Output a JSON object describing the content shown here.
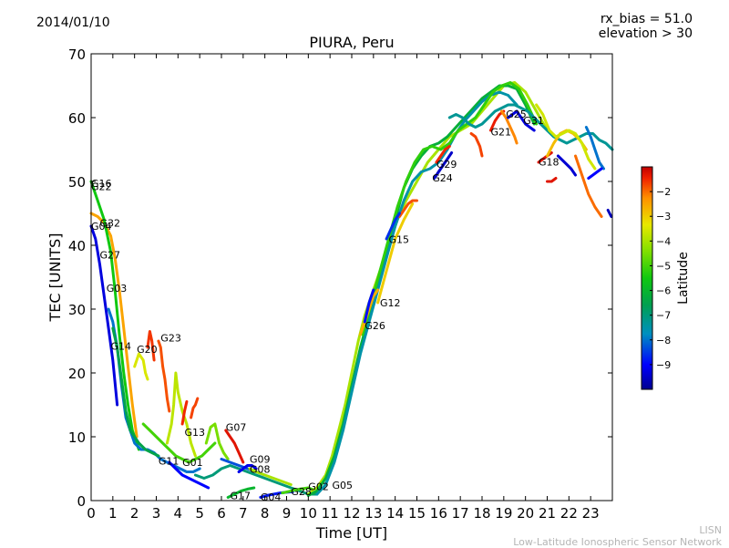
{
  "header": {
    "date": "2014/01/10",
    "rx_bias": "rx_bias = 51.0",
    "elevation": "elevation > 30"
  },
  "footer": {
    "line1": "LISN",
    "line2": "Low-Latitude Ionospheric Sensor Network"
  },
  "chart_data": {
    "type": "scatter",
    "title": "PIURA, Peru",
    "xlabel": "Time [UT]",
    "ylabel": "TEC [UNITS]",
    "xlim": [
      0,
      24
    ],
    "ylim": [
      0,
      70
    ],
    "xticks": [
      0,
      1,
      2,
      3,
      4,
      5,
      6,
      7,
      8,
      9,
      10,
      11,
      12,
      13,
      14,
      15,
      16,
      17,
      18,
      19,
      20,
      21,
      22,
      23
    ],
    "yticks": [
      0,
      10,
      20,
      30,
      40,
      50,
      60,
      70
    ],
    "colorbar": {
      "label": "Latitude",
      "ticks": [
        -2,
        -3,
        -4,
        -5,
        -6,
        -7,
        -8,
        -9
      ],
      "range": [
        -10,
        -1
      ],
      "tick_labels": [
        "−2",
        "−3",
        "−4",
        "−5",
        "−6",
        "−7",
        "−8",
        "−9"
      ]
    },
    "satellite_labels": [
      {
        "name": "G16",
        "x": 0.0,
        "y": 49.7
      },
      {
        "name": "G22",
        "x": 0.0,
        "y": 49.2
      },
      {
        "name": "G04",
        "x": 0.0,
        "y": 43.0
      },
      {
        "name": "G32",
        "x": 0.4,
        "y": 43.5
      },
      {
        "name": "G27",
        "x": 0.4,
        "y": 38.5
      },
      {
        "name": "G03",
        "x": 0.7,
        "y": 33.3
      },
      {
        "name": "G14",
        "x": 0.9,
        "y": 24.2
      },
      {
        "name": "G20",
        "x": 2.1,
        "y": 23.7
      },
      {
        "name": "G23",
        "x": 3.2,
        "y": 25.5
      },
      {
        "name": "G13",
        "x": 4.3,
        "y": 10.7
      },
      {
        "name": "G11",
        "x": 3.1,
        "y": 6.2
      },
      {
        "name": "G01",
        "x": 4.2,
        "y": 6.0
      },
      {
        "name": "G07",
        "x": 6.2,
        "y": 11.5
      },
      {
        "name": "G09",
        "x": 7.3,
        "y": 6.5
      },
      {
        "name": "G08",
        "x": 7.3,
        "y": 4.9
      },
      {
        "name": "G17",
        "x": 6.4,
        "y": 0.8
      },
      {
        "name": "G04",
        "x": 7.8,
        "y": 0.6
      },
      {
        "name": "G28",
        "x": 9.2,
        "y": 1.4
      },
      {
        "name": "G02",
        "x": 10.0,
        "y": 2.2
      },
      {
        "name": "G05",
        "x": 11.1,
        "y": 2.4
      },
      {
        "name": "G26",
        "x": 12.6,
        "y": 27.4
      },
      {
        "name": "G12",
        "x": 13.3,
        "y": 31.0
      },
      {
        "name": "G15",
        "x": 13.7,
        "y": 40.9
      },
      {
        "name": "G29",
        "x": 15.9,
        "y": 52.7
      },
      {
        "name": "G24",
        "x": 15.7,
        "y": 50.6
      },
      {
        "name": "G21",
        "x": 18.4,
        "y": 57.8
      },
      {
        "name": "G25",
        "x": 19.1,
        "y": 60.6
      },
      {
        "name": "G31",
        "x": 19.9,
        "y": 59.6
      },
      {
        "name": "G18",
        "x": 20.6,
        "y": 53.1
      }
    ],
    "series": [
      {
        "lat": -2.5,
        "x": [
          0.0,
          0.3,
          0.6,
          0.9,
          1.1,
          1.3,
          1.5,
          1.7,
          1.9,
          2.1
        ],
        "y": [
          45.0,
          44.5,
          43.5,
          41.5,
          38.0,
          33.0,
          27.0,
          21.0,
          15.0,
          10.0
        ]
      },
      {
        "lat": -5.5,
        "x": [
          0.0,
          0.3,
          0.6,
          0.9,
          1.1,
          1.3,
          1.5,
          1.7,
          1.9,
          2.2
        ],
        "y": [
          50.0,
          47.0,
          44.0,
          39.0,
          33.0,
          26.0,
          20.0,
          15.0,
          11.0,
          8.0
        ]
      },
      {
        "lat": -9.3,
        "x": [
          0.0,
          0.2,
          0.4,
          0.6,
          0.8,
          1.0,
          1.2
        ],
        "y": [
          43.0,
          41.0,
          37.0,
          32.0,
          27.0,
          22.0,
          15.0
        ]
      },
      {
        "lat": -8.0,
        "x": [
          0.8,
          1.0,
          1.2,
          1.4,
          1.6,
          1.8,
          2.0,
          2.3,
          2.6,
          2.9,
          3.2,
          3.5,
          3.8,
          4.1,
          4.4,
          4.7,
          5.0
        ],
        "y": [
          30.0,
          28.0,
          24.0,
          18.0,
          13.0,
          11.0,
          9.0,
          8.0,
          8.0,
          7.5,
          6.5,
          6.0,
          5.5,
          5.0,
          4.5,
          4.5,
          5.0
        ]
      },
      {
        "lat": -6.5,
        "x": [
          1.0,
          1.2,
          1.4,
          1.6,
          1.8,
          2.0,
          2.2,
          2.5,
          2.8,
          3.1
        ],
        "y": [
          27.0,
          24.0,
          19.0,
          14.0,
          11.0,
          10.0,
          9.0,
          8.0,
          7.5,
          7.0
        ]
      },
      {
        "lat": -3.5,
        "x": [
          2.0,
          2.2,
          2.4,
          2.5,
          2.6
        ],
        "y": [
          21.0,
          23.0,
          22.0,
          20.0,
          19.0
        ]
      },
      {
        "lat": -1.6,
        "x": [
          2.6,
          2.7,
          2.8,
          2.9
        ],
        "y": [
          24.0,
          26.5,
          25.0,
          22.0
        ]
      },
      {
        "lat": -1.8,
        "x": [
          3.1,
          3.2,
          3.3,
          3.4,
          3.5,
          3.6
        ],
        "y": [
          25.0,
          24.0,
          21.0,
          19.0,
          16.0,
          14.0
        ]
      },
      {
        "lat": -3.8,
        "x": [
          3.5,
          3.7,
          3.8,
          3.9,
          4.0,
          4.2,
          4.4,
          4.6,
          4.8
        ],
        "y": [
          9.0,
          12.0,
          15.0,
          20.0,
          17.0,
          14.0,
          12.0,
          9.0,
          7.0
        ]
      },
      {
        "lat": -1.5,
        "x": [
          4.2,
          4.3,
          4.4
        ],
        "y": [
          12.0,
          14.0,
          15.5
        ]
      },
      {
        "lat": -1.7,
        "x": [
          4.6,
          4.7,
          4.8,
          4.9
        ],
        "y": [
          13.0,
          14.5,
          15.0,
          16.0
        ]
      },
      {
        "lat": -5.0,
        "x": [
          2.4,
          2.7,
          3.0,
          3.3,
          3.6,
          3.9,
          4.2,
          4.5,
          4.8,
          5.1,
          5.4,
          5.7
        ],
        "y": [
          12.0,
          11.0,
          10.0,
          9.0,
          8.0,
          7.0,
          6.5,
          6.0,
          6.5,
          7.0,
          8.0,
          9.0
        ]
      },
      {
        "lat": -9.0,
        "x": [
          3.6,
          3.9,
          4.2,
          4.5,
          4.8,
          5.1,
          5.4
        ],
        "y": [
          6.0,
          5.0,
          4.0,
          3.5,
          3.0,
          2.5,
          2.0
        ]
      },
      {
        "lat": -4.5,
        "x": [
          5.3,
          5.5,
          5.7,
          5.9,
          6.1,
          6.3
        ],
        "y": [
          9.0,
          11.5,
          12.0,
          9.0,
          7.5,
          6.5
        ]
      },
      {
        "lat": -7.0,
        "x": [
          4.8,
          5.2,
          5.6,
          6.0,
          6.4,
          6.8,
          7.2,
          7.6,
          8.0,
          8.4,
          8.8,
          9.2,
          9.6,
          10.0,
          10.4
        ],
        "y": [
          4.0,
          3.5,
          4.0,
          5.0,
          5.5,
          5.0,
          4.5,
          4.0,
          3.5,
          3.0,
          2.5,
          2.0,
          1.5,
          1.0,
          1.0
        ]
      },
      {
        "lat": -1.3,
        "x": [
          6.2,
          6.4,
          6.6,
          6.8,
          7.0
        ],
        "y": [
          11.0,
          10.0,
          9.0,
          7.5,
          6.0
        ]
      },
      {
        "lat": -8.3,
        "x": [
          6.0,
          6.4,
          6.8,
          7.2,
          7.6,
          8.0
        ],
        "y": [
          6.5,
          6.0,
          5.5,
          5.0,
          4.5,
          4.0
        ]
      },
      {
        "lat": -9.2,
        "x": [
          6.8,
          7.0,
          7.2,
          7.4,
          7.6
        ],
        "y": [
          4.5,
          5.0,
          5.5,
          5.5,
          5.0
        ]
      },
      {
        "lat": -4.0,
        "x": [
          7.3,
          7.6,
          8.0,
          8.4,
          8.8,
          9.2
        ],
        "y": [
          5.0,
          4.5,
          4.0,
          3.5,
          3.0,
          2.5
        ]
      },
      {
        "lat": -6.0,
        "x": [
          6.3,
          6.6,
          6.9,
          7.2,
          7.5
        ],
        "y": [
          0.5,
          1.0,
          1.5,
          1.8,
          2.0
        ]
      },
      {
        "lat": -8.8,
        "x": [
          7.8,
          8.1,
          8.4,
          8.7,
          9.0,
          9.3
        ],
        "y": [
          0.5,
          0.8,
          1.0,
          1.2,
          1.3,
          1.4
        ]
      },
      {
        "lat": -5.0,
        "x": [
          8.8,
          9.2,
          9.6,
          10.0,
          10.4
        ],
        "y": [
          1.2,
          1.5,
          1.8,
          2.0,
          1.5
        ]
      },
      {
        "lat": -4.0,
        "x": [
          10.0,
          10.4,
          10.8,
          11.1,
          11.4,
          11.7,
          12.0,
          12.3,
          12.6,
          12.9,
          13.2,
          13.5,
          13.8,
          14.1,
          14.5,
          15.0,
          15.5,
          16.0,
          16.5,
          17.0,
          17.5,
          18.0,
          18.5,
          19.0,
          19.5,
          20.0,
          20.5,
          21.0
        ],
        "y": [
          1.0,
          2.0,
          4.0,
          7.0,
          11.0,
          15.0,
          20.0,
          25.0,
          29.0,
          32.0,
          35.0,
          38.0,
          41.0,
          44.0,
          47.0,
          50.0,
          53.0,
          55.0,
          57.0,
          58.0,
          59.0,
          61.0,
          63.0,
          65.0,
          65.5,
          64.0,
          61.0,
          58.0
        ]
      },
      {
        "lat": -6.2,
        "x": [
          10.0,
          10.4,
          10.8,
          11.2,
          11.6,
          12.0,
          12.4,
          12.8,
          13.2,
          13.6,
          14.0,
          14.4,
          14.8,
          15.2,
          15.6,
          16.0,
          16.4,
          16.8,
          17.2,
          17.6,
          18.0,
          18.4,
          18.8,
          19.2,
          19.6,
          20.0,
          20.4
        ],
        "y": [
          0.8,
          1.5,
          3.5,
          7.0,
          12.0,
          18.0,
          24.0,
          29.0,
          34.0,
          39.0,
          44.0,
          49.0,
          52.0,
          54.0,
          55.5,
          56.0,
          57.0,
          58.5,
          60.0,
          61.5,
          63.0,
          64.0,
          65.0,
          65.0,
          64.5,
          62.0,
          59.0
        ]
      },
      {
        "lat": -7.5,
        "x": [
          10.4,
          10.8,
          11.2,
          11.6,
          12.0,
          12.4,
          12.8,
          13.2,
          13.6,
          14.0,
          14.4,
          14.8,
          15.2,
          15.6,
          16.0,
          16.4,
          16.8,
          17.2,
          17.6,
          18.0,
          18.4,
          18.8,
          19.2,
          19.6
        ],
        "y": [
          1.0,
          2.5,
          6.0,
          11.0,
          17.0,
          23.0,
          28.0,
          33.0,
          38.0,
          43.0,
          47.0,
          50.0,
          51.5,
          52.0,
          53.0,
          55.0,
          57.5,
          59.5,
          61.0,
          62.5,
          63.5,
          64.0,
          63.5,
          62.0
        ]
      },
      {
        "lat": -5.2,
        "x": [
          12.5,
          12.9,
          13.3,
          13.7,
          14.1,
          14.5,
          14.9,
          15.3,
          15.7,
          16.1,
          16.5,
          16.9,
          17.3,
          17.7,
          18.1,
          18.5,
          18.9,
          19.3,
          19.7,
          20.1,
          20.5
        ],
        "y": [
          26.0,
          31.0,
          36.0,
          41.0,
          46.0,
          50.0,
          53.0,
          55.0,
          55.5,
          55.0,
          56.0,
          58.0,
          59.0,
          60.0,
          62.0,
          64.0,
          65.0,
          65.5,
          64.5,
          62.0,
          59.0
        ]
      },
      {
        "lat": -2.6,
        "x": [
          12.4,
          12.6,
          12.8,
          13.0,
          13.2
        ],
        "y": [
          26.0,
          28.0,
          30.0,
          32.0,
          33.0
        ]
      },
      {
        "lat": -8.9,
        "x": [
          12.6,
          12.7,
          12.8,
          12.9,
          13.0
        ],
        "y": [
          28.0,
          29.5,
          31.0,
          32.0,
          33.0
        ]
      },
      {
        "lat": -3.0,
        "x": [
          13.2,
          13.6,
          14.0,
          14.4,
          14.8
        ],
        "y": [
          31.0,
          36.0,
          41.0,
          44.0,
          46.5
        ]
      },
      {
        "lat": -1.8,
        "x": [
          14.2,
          14.4,
          14.6,
          14.8,
          15.0
        ],
        "y": [
          44.5,
          45.5,
          46.5,
          47.0,
          47.0
        ]
      },
      {
        "lat": -8.6,
        "x": [
          13.6,
          13.8,
          14.0,
          14.2
        ],
        "y": [
          41.0,
          42.5,
          44.0,
          45.0
        ]
      },
      {
        "lat": -9.5,
        "x": [
          15.8,
          16.0,
          16.3,
          16.6
        ],
        "y": [
          50.5,
          51.5,
          53.0,
          54.5
        ]
      },
      {
        "lat": -1.5,
        "x": [
          15.9,
          16.1,
          16.3,
          16.5
        ],
        "y": [
          53.0,
          54.0,
          55.0,
          55.5
        ]
      },
      {
        "lat": -7.3,
        "x": [
          16.5,
          16.8,
          17.1,
          17.4,
          17.7,
          18.0,
          18.3,
          18.6,
          18.9,
          19.2,
          19.5,
          19.8,
          20.1,
          20.4,
          20.7,
          21.0,
          21.3,
          21.6,
          21.9,
          22.2,
          22.5,
          22.8,
          23.1,
          23.4,
          23.7,
          24.0
        ],
        "y": [
          60.0,
          60.5,
          60.0,
          59.0,
          58.5,
          59.0,
          60.0,
          61.0,
          61.5,
          62.0,
          62.0,
          61.5,
          61.0,
          60.0,
          59.0,
          58.0,
          57.0,
          56.5,
          56.0,
          56.5,
          57.0,
          57.5,
          57.5,
          56.5,
          56.0,
          55.0
        ]
      },
      {
        "lat": -1.7,
        "x": [
          17.5,
          17.7,
          17.9,
          18.0
        ],
        "y": [
          57.5,
          57.0,
          55.5,
          54.0
        ]
      },
      {
        "lat": -1.4,
        "x": [
          18.4,
          18.6,
          18.8,
          19.0
        ],
        "y": [
          58.0,
          59.5,
          60.5,
          61.0
        ]
      },
      {
        "lat": -2.2,
        "x": [
          18.9,
          19.1,
          19.3,
          19.5,
          19.6
        ],
        "y": [
          61.0,
          60.0,
          58.5,
          57.0,
          56.0
        ]
      },
      {
        "lat": -9.3,
        "x": [
          19.2,
          19.4,
          19.6,
          19.8,
          20.0,
          20.2,
          20.4
        ],
        "y": [
          60.0,
          60.5,
          61.0,
          60.0,
          59.0,
          58.5,
          58.0
        ]
      },
      {
        "lat": -1.3,
        "x": [
          20.6,
          20.8,
          21.0,
          21.2
        ],
        "y": [
          53.0,
          53.5,
          54.0,
          54.5
        ]
      },
      {
        "lat": -2.8,
        "x": [
          21.0,
          21.3,
          21.6,
          21.9,
          22.2,
          22.5,
          22.8
        ],
        "y": [
          54.0,
          56.0,
          57.5,
          58.0,
          57.5,
          56.5,
          55.0
        ]
      },
      {
        "lat": -1.3,
        "x": [
          21.0,
          21.2,
          21.4
        ],
        "y": [
          50.0,
          50.0,
          50.5
        ]
      },
      {
        "lat": -3.6,
        "x": [
          20.5,
          20.8,
          21.1,
          21.4,
          21.7,
          22.0,
          22.3,
          22.6,
          22.9,
          23.2
        ],
        "y": [
          62.0,
          60.5,
          58.0,
          57.0,
          57.5,
          58.0,
          57.5,
          56.0,
          53.5,
          52.0
        ]
      },
      {
        "lat": -2.0,
        "x": [
          22.3,
          22.6,
          22.9,
          23.2,
          23.5
        ],
        "y": [
          54.0,
          51.0,
          48.0,
          46.0,
          44.5
        ]
      },
      {
        "lat": -8.0,
        "x": [
          22.8,
          23.0,
          23.2,
          23.4,
          23.6
        ],
        "y": [
          58.5,
          57.0,
          55.0,
          53.0,
          52.0
        ]
      },
      {
        "lat": -9.4,
        "x": [
          21.5,
          21.8,
          22.1,
          22.3
        ],
        "y": [
          54.0,
          53.0,
          52.0,
          51.0
        ]
      },
      {
        "lat": -9.0,
        "x": [
          22.9,
          23.1,
          23.3,
          23.5
        ],
        "y": [
          50.5,
          51.0,
          51.5,
          52.0
        ]
      },
      {
        "lat": -9.6,
        "x": [
          23.8,
          23.95
        ],
        "y": [
          45.5,
          44.5
        ]
      }
    ]
  }
}
